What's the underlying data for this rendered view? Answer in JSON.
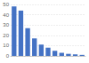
{
  "chart_data": {
    "type": "bar",
    "categories": [
      null,
      null,
      null,
      null,
      null,
      null,
      null,
      null,
      null,
      null,
      null
    ],
    "values": [
      48,
      44,
      27,
      17,
      11,
      8,
      5,
      3,
      2,
      1.5,
      1
    ],
    "color": "#4472c4",
    "ylim": [
      0,
      50
    ],
    "yticks": [
      0,
      10,
      20,
      30,
      40,
      50
    ],
    "grid": true
  }
}
